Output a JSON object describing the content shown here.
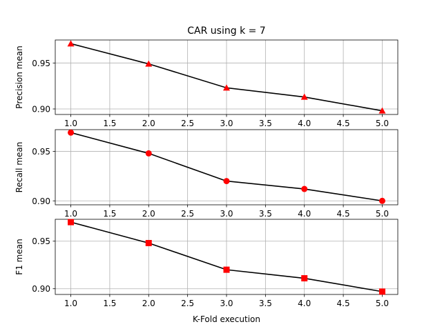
{
  "figure": {
    "title": "CAR using k = 7",
    "xlabel": "K-Fold execution"
  },
  "style": {
    "line_color": "#000000",
    "marker_color": "#ff0000",
    "grid_color": "#b0b0b0",
    "background": "#ffffff"
  },
  "chart_data": [
    {
      "type": "line",
      "title": "CAR using k = 7",
      "xlabel": "",
      "ylabel": "Precision mean",
      "marker": "triangle",
      "x": [
        1.0,
        2.0,
        3.0,
        4.0,
        5.0
      ],
      "series": [
        {
          "values": [
            0.971,
            0.949,
            0.923,
            0.913,
            0.898
          ]
        }
      ],
      "xlim": [
        0.8,
        5.2
      ],
      "ylim": [
        0.894,
        0.975
      ],
      "xticks": [
        "1.0",
        "1.5",
        "2.0",
        "2.5",
        "3.0",
        "3.5",
        "4.0",
        "4.5",
        "5.0"
      ],
      "yticks": [
        "0.90",
        "0.95"
      ],
      "grid": true
    },
    {
      "type": "line",
      "title": "",
      "xlabel": "",
      "ylabel": "Recall mean",
      "marker": "circle",
      "x": [
        1.0,
        2.0,
        3.0,
        4.0,
        5.0
      ],
      "series": [
        {
          "values": [
            0.969,
            0.948,
            0.92,
            0.912,
            0.9
          ]
        }
      ],
      "xlim": [
        0.8,
        5.2
      ],
      "ylim": [
        0.896,
        0.972
      ],
      "xticks": [
        "1.0",
        "1.5",
        "2.0",
        "2.5",
        "3.0",
        "3.5",
        "4.0",
        "4.5",
        "5.0"
      ],
      "yticks": [
        "0.90",
        "0.95"
      ],
      "grid": true
    },
    {
      "type": "line",
      "title": "",
      "xlabel": "K-Fold execution",
      "ylabel": "F1 mean",
      "marker": "square",
      "x": [
        1.0,
        2.0,
        3.0,
        4.0,
        5.0
      ],
      "series": [
        {
          "values": [
            0.97,
            0.948,
            0.92,
            0.911,
            0.897
          ]
        }
      ],
      "xlim": [
        0.8,
        5.2
      ],
      "ylim": [
        0.894,
        0.973
      ],
      "xticks": [
        "1.0",
        "1.5",
        "2.0",
        "2.5",
        "3.0",
        "3.5",
        "4.0",
        "4.5",
        "5.0"
      ],
      "yticks": [
        "0.90",
        "0.95"
      ],
      "grid": true
    }
  ]
}
